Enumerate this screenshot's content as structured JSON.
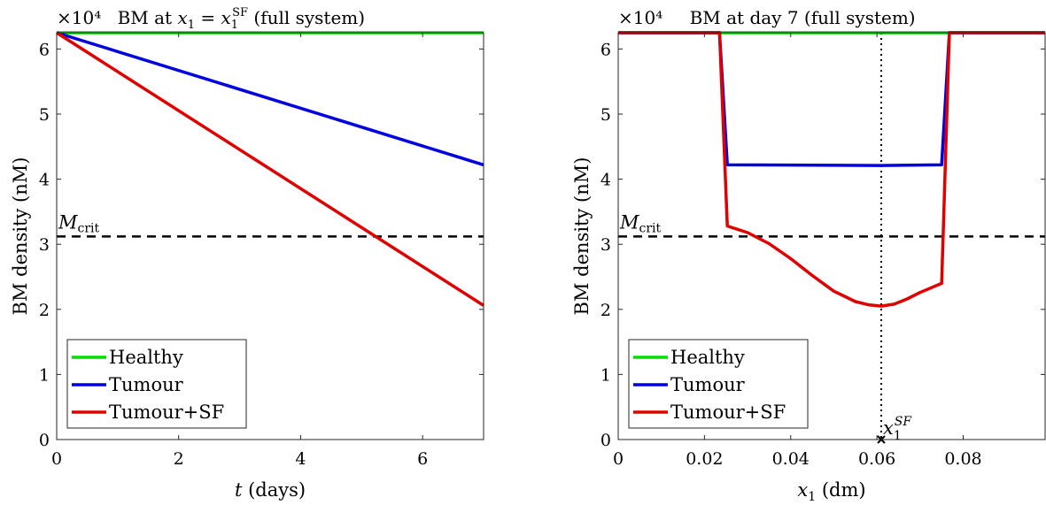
{
  "chart_data": [
    {
      "type": "line",
      "title": "BM at x₁ = x₁ˢᶠ (full system)",
      "multiplier": "×10⁴",
      "xlabel": "t (days)",
      "ylabel": "BM density (nM)",
      "xlim": [
        0,
        7
      ],
      "ylim": [
        0,
        6.25
      ],
      "xticks": [
        "0",
        "2",
        "4",
        "6"
      ],
      "xtick_values": [
        0,
        2,
        4,
        6
      ],
      "yticks": [
        "0",
        "1",
        "2",
        "3",
        "4",
        "5",
        "6"
      ],
      "ytick_values": [
        0,
        1,
        2,
        3,
        4,
        5,
        6
      ],
      "grid": false,
      "legend_position": "bottom-left",
      "series": [
        {
          "name": "Healthy",
          "color": "#00e000",
          "x": [
            0,
            7
          ],
          "y": [
            6.25,
            6.25
          ]
        },
        {
          "name": "Tumour",
          "color": "#0000e0",
          "x": [
            0,
            7
          ],
          "y": [
            6.25,
            4.22
          ]
        },
        {
          "name": "Tumour+SF",
          "color": "#e00000",
          "x": [
            0,
            7
          ],
          "y": [
            6.25,
            2.06
          ]
        }
      ],
      "reference_line": {
        "label": "M_crit",
        "label_main": "M",
        "label_sub": "crit",
        "y": 3.12
      }
    },
    {
      "type": "line",
      "title": "BM at day 7 (full system)",
      "multiplier": "×10⁴",
      "xlabel": "x₁ (dm)",
      "ylabel": "BM density (nM)",
      "xlim": [
        0,
        0.099
      ],
      "ylim": [
        0,
        6.25
      ],
      "xticks": [
        "0",
        "0.02",
        "0.04",
        "0.06",
        "0.08"
      ],
      "xtick_values": [
        0,
        0.02,
        0.04,
        0.06,
        0.08
      ],
      "yticks": [
        "0",
        "1",
        "2",
        "3",
        "4",
        "5",
        "6"
      ],
      "ytick_values": [
        0,
        1,
        2,
        3,
        4,
        5,
        6
      ],
      "grid": false,
      "legend_position": "bottom-left",
      "series": [
        {
          "name": "Healthy",
          "color": "#00e000",
          "x": [
            0,
            0.099
          ],
          "y": [
            6.25,
            6.25
          ]
        },
        {
          "name": "Tumour",
          "color": "#0000e0",
          "x": [
            0,
            0.0235,
            0.0253,
            0.061,
            0.075,
            0.0768,
            0.099
          ],
          "y": [
            6.25,
            6.25,
            4.22,
            4.21,
            4.22,
            6.25,
            6.25
          ]
        },
        {
          "name": "Tumour+SF",
          "color": "#e00000",
          "x": [
            0,
            0.0235,
            0.0253,
            0.03,
            0.035,
            0.04,
            0.045,
            0.05,
            0.055,
            0.058,
            0.061,
            0.064,
            0.067,
            0.07,
            0.075,
            0.0768,
            0.099
          ],
          "y": [
            6.25,
            6.25,
            3.28,
            3.18,
            3.01,
            2.78,
            2.52,
            2.28,
            2.12,
            2.07,
            2.05,
            2.08,
            2.16,
            2.26,
            2.4,
            6.25,
            6.25
          ]
        }
      ],
      "reference_line": {
        "label": "M_crit",
        "label_main": "M",
        "label_sub": "crit",
        "y": 3.12
      },
      "marker": {
        "label": "x₁^SF",
        "label_main": "x",
        "label_sub": "1",
        "label_sup": "SF",
        "x": 0.061,
        "y": 0
      }
    }
  ]
}
